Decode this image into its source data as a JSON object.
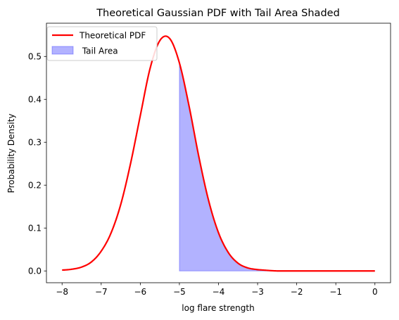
{
  "chart_data": {
    "type": "line",
    "title": "Theoretical Gaussian PDF with  Tail Area Shaded",
    "xlabel": "log flare strength",
    "ylabel": "Probability Density",
    "xlim": [
      -8.4,
      0.4
    ],
    "ylim": [
      -0.0275,
      0.5775
    ],
    "grid": false,
    "legend_position": "top-left",
    "xticks": [
      -8,
      -7,
      -6,
      -5,
      -4,
      -3,
      -2,
      -1,
      0
    ],
    "xtick_labels": [
      "−8",
      "−7",
      "−6",
      "−5",
      "−4",
      "−3",
      "−2",
      "−1",
      "0"
    ],
    "yticks": [
      0.0,
      0.1,
      0.2,
      0.3,
      0.4,
      0.5
    ],
    "ytick_labels": [
      "0.0",
      "0.1",
      "0.2",
      "0.3",
      "0.4",
      "0.5"
    ],
    "series": [
      {
        "name": "Theoretical PDF",
        "color": "#ff0000",
        "x": [
          -8.0,
          -7.75,
          -7.5,
          -7.25,
          -7.0,
          -6.75,
          -6.5,
          -6.25,
          -6.0,
          -5.75,
          -5.5,
          -5.25,
          -5.0,
          -4.75,
          -4.5,
          -4.25,
          -4.0,
          -3.75,
          -3.5,
          -3.25,
          -3.0,
          -2.5,
          -2.0,
          -1.5,
          -1.0,
          -0.5,
          0.0
        ],
        "y": [
          0.002,
          0.004,
          0.009,
          0.021,
          0.046,
          0.088,
          0.155,
          0.25,
          0.362,
          0.472,
          0.537,
          0.542,
          0.485,
          0.383,
          0.265,
          0.163,
          0.089,
          0.043,
          0.018,
          0.007,
          0.003,
          0.0,
          0.0,
          0.0,
          0.0,
          0.0,
          0.0
        ]
      }
    ],
    "shaded_area": {
      "name": " Tail Area",
      "color": "#0000ff",
      "from_x": -5.0
    }
  }
}
